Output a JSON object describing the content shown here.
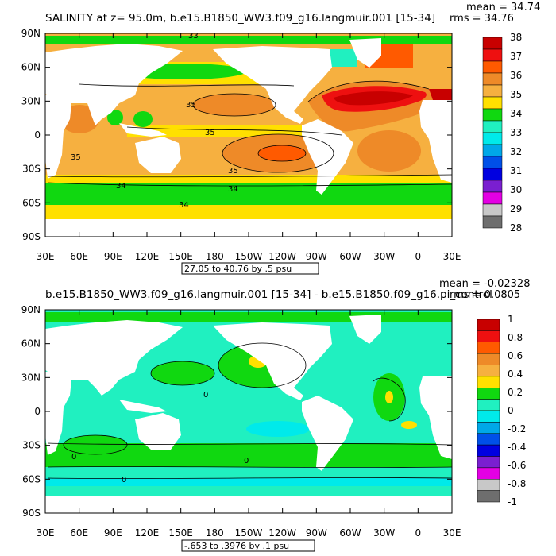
{
  "chart_data": [
    {
      "type": "heatmap",
      "title": "SALINITY at z=  95.0m, b.e15.B1850_WW3.f09_g16.langmuir.001 [15-34]",
      "stats": {
        "mean": "mean = 34.74",
        "rms": "rms = 34.76"
      },
      "range_note": "27.05 to 40.76 by .5 psu",
      "x_ticks": [
        "30E",
        "60E",
        "90E",
        "120E",
        "150E",
        "180",
        "150W",
        "120W",
        "90W",
        "60W",
        "30W",
        "0",
        "30E"
      ],
      "y_ticks": [
        "90N",
        "60N",
        "30N",
        "0",
        "30S",
        "60S",
        "90S"
      ],
      "xlim": [
        30,
        390
      ],
      "ylim": [
        -90,
        90
      ],
      "colorbar": {
        "labels": [
          "38",
          "37",
          "36",
          "35",
          "34",
          "33",
          "32",
          "31",
          "30",
          "29",
          "28"
        ],
        "colors": [
          "#c80000",
          "#ee1010",
          "#ff5a00",
          "#ee8a28",
          "#f6b040",
          "#ffe000",
          "#10d810",
          "#20f0c0",
          "#00eaea",
          "#00a8e8",
          "#0050e8",
          "#0000e0",
          "#7a1fd0",
          "#e400e4",
          "#c8c8c8",
          "#6e6e6e"
        ]
      },
      "contour_labels": [
        "35",
        "35",
        "35",
        "35",
        "34",
        "34",
        "34",
        "33"
      ]
    },
    {
      "type": "heatmap",
      "title": "b.e15.B1850_WW3.f09_g16.langmuir.001 [15-34] - b.e15.B1850.f09_g16.pi_control",
      "stats": {
        "mean": "mean = -0.02328",
        "rms": "rms = 0.0805"
      },
      "range_note": "-.653 to .3976 by .1 psu",
      "x_ticks": [
        "30E",
        "60E",
        "90E",
        "120E",
        "150E",
        "180",
        "150W",
        "120W",
        "90W",
        "60W",
        "30W",
        "0",
        "30E"
      ],
      "y_ticks": [
        "90N",
        "60N",
        "30N",
        "0",
        "30S",
        "60S",
        "90S"
      ],
      "xlim": [
        30,
        390
      ],
      "ylim": [
        -90,
        90
      ],
      "colorbar": {
        "labels": [
          "1",
          "0.8",
          "0.6",
          "0.4",
          "0.2",
          "0",
          "-0.2",
          "-0.4",
          "-0.6",
          "-0.8",
          "-1"
        ],
        "colors": [
          "#c80000",
          "#ee1010",
          "#ff5a00",
          "#ee8a28",
          "#f6b040",
          "#ffe000",
          "#10d810",
          "#20f0c0",
          "#00eaea",
          "#00a8e8",
          "#0050e8",
          "#0000e0",
          "#7a1fd0",
          "#e400e4",
          "#c8c8c8",
          "#6e6e6e"
        ]
      },
      "contour_labels": [
        "0",
        "0",
        "0",
        "0"
      ]
    }
  ]
}
